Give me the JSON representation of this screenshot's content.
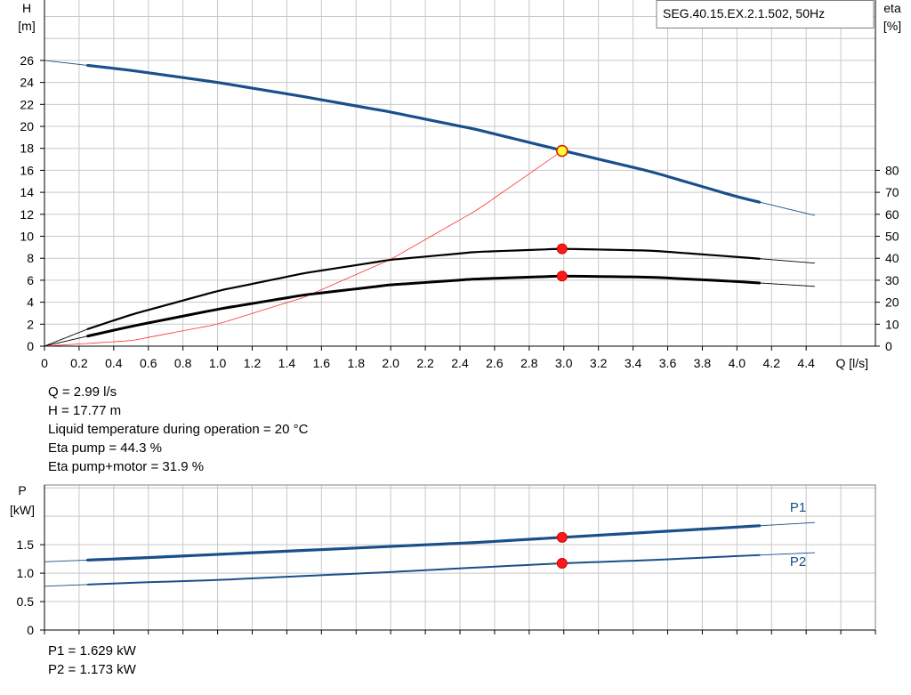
{
  "chart_data": [
    {
      "type": "line",
      "title": "SEG.40.15.EX.2.1.502, 50Hz",
      "x_axis": {
        "label": "Q [l/s]",
        "range": [
          0,
          4.8
        ],
        "ticks": [
          "0",
          "0.2",
          "0.4",
          "0.6",
          "0.8",
          "1.0",
          "1.2",
          "1.4",
          "1.6",
          "1.8",
          "2.0",
          "2.2",
          "2.4",
          "2.6",
          "2.8",
          "3.0",
          "3.2",
          "3.4",
          "3.6",
          "3.8",
          "4.0",
          "4.2",
          "4.4"
        ]
      },
      "y_axis_left": {
        "label_line1": "H",
        "label_line2": "[m]",
        "range": [
          0,
          31.5
        ],
        "ticks": [
          "0",
          "2",
          "4",
          "6",
          "8",
          "10",
          "12",
          "14",
          "16",
          "18",
          "20",
          "22",
          "24",
          "26"
        ]
      },
      "y_axis_right": {
        "label_line1": "eta",
        "label_line2": "[%]",
        "range": [
          0,
          157.5
        ],
        "ticks": [
          "0",
          "10",
          "20",
          "30",
          "40",
          "50",
          "60",
          "70",
          "80"
        ]
      },
      "grid": true,
      "series": [
        {
          "kind": "pump-curve",
          "axis": "left",
          "color": "#1a4f8a",
          "x": [
            0,
            0.5,
            1.0,
            1.5,
            2.0,
            2.5,
            3.0,
            3.5,
            4.0,
            4.45
          ],
          "y": [
            26.0,
            25.1,
            24.0,
            22.7,
            21.3,
            19.7,
            17.77,
            15.9,
            13.6,
            11.9
          ]
        },
        {
          "kind": "system-curve",
          "axis": "left",
          "color": "#ff3030",
          "x": [
            0,
            0.5,
            1.0,
            1.5,
            2.0,
            2.5,
            2.99
          ],
          "y": [
            0,
            0.5,
            2.0,
            4.45,
            7.9,
            12.4,
            17.77
          ]
        },
        {
          "kind": "eta-pump",
          "axis": "right",
          "color": "#000000",
          "x": [
            0,
            0.25,
            0.5,
            1.0,
            1.5,
            2.0,
            2.5,
            2.99,
            3.5,
            4.0,
            4.45
          ],
          "y": [
            0,
            7.8,
            14.3,
            25.1,
            33.2,
            39.3,
            42.9,
            44.3,
            43.5,
            40.6,
            37.8
          ]
        },
        {
          "kind": "eta-pump-motor",
          "axis": "right",
          "color": "#000000",
          "x": [
            0,
            0.25,
            0.5,
            1.0,
            1.5,
            2.0,
            2.5,
            2.99,
            3.5,
            4.0,
            4.45
          ],
          "y": [
            0,
            4.6,
            9.0,
            16.8,
            23.3,
            27.9,
            30.6,
            31.9,
            31.4,
            29.4,
            27.2
          ]
        }
      ],
      "duty_point": {
        "x": 2.99,
        "y": 17.77,
        "eta_pump": 44.3,
        "eta_pump_motor": 31.9
      }
    },
    {
      "type": "line",
      "x_axis": {
        "range": [
          0,
          4.8
        ]
      },
      "y_axis_left": {
        "label_line1": "P",
        "label_line2": "[kW]",
        "range": [
          0,
          2.55
        ],
        "ticks": [
          "0",
          "0.5",
          "1.0",
          "1.5"
        ]
      },
      "grid": true,
      "series": [
        {
          "name": "P1",
          "color": "#1a4f8a",
          "x": [
            0,
            0.5,
            1.0,
            1.5,
            2.0,
            2.5,
            2.99,
            3.5,
            4.0,
            4.45
          ],
          "y": [
            1.2,
            1.26,
            1.33,
            1.4,
            1.47,
            1.54,
            1.629,
            1.72,
            1.81,
            1.89
          ]
        },
        {
          "name": "P2",
          "color": "#1a4f8a",
          "x": [
            0,
            0.5,
            1.0,
            1.5,
            2.0,
            2.5,
            2.99,
            3.5,
            4.0,
            4.45
          ],
          "y": [
            0.77,
            0.83,
            0.88,
            0.95,
            1.02,
            1.1,
            1.173,
            1.23,
            1.3,
            1.36
          ]
        }
      ],
      "duty_point": {
        "x": 2.99,
        "p1": 1.629,
        "p2": 1.173
      }
    }
  ],
  "duty_info": {
    "q": "Q = 2.99 l/s",
    "h": "H = 17.77 m",
    "temperature": "Liquid temperature during operation = 20 °C",
    "eta_pump": "Eta pump = 44.3 %",
    "eta_pump_motor": "Eta pump+motor = 31.9 %"
  },
  "power_info": {
    "p1": "P1 = 1.629 kW",
    "p2": "P2 = 1.173 kW"
  }
}
